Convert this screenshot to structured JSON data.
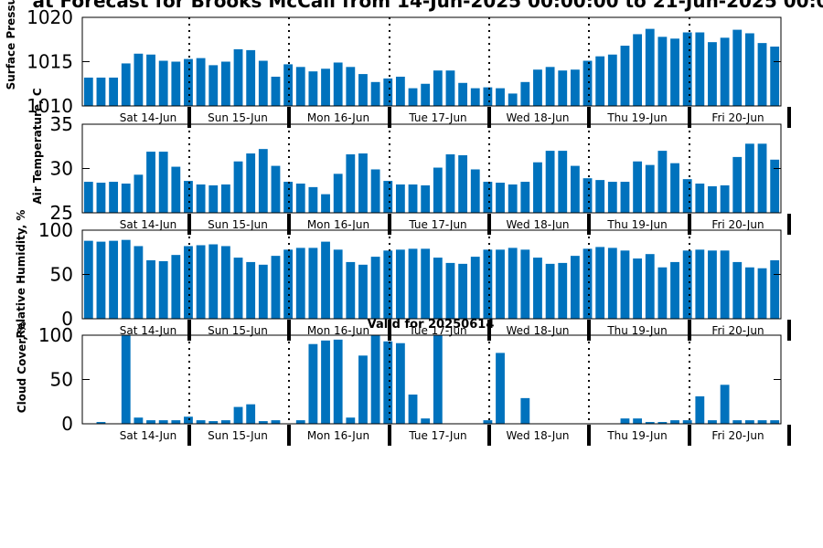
{
  "title": "at Forecast for Brooks McCall from 14-Jun-2025 00:00:00 to 21-Jun-2025 00:0",
  "valid_label": "Valid for 20250614",
  "colors": {
    "bar": "#0072bd",
    "axis": "#000000"
  },
  "chart_data": [
    {
      "type": "bar",
      "ylabel": "Surface Pressure, m",
      "ylim": [
        1010,
        1020
      ],
      "yticks": [
        "1010",
        "1015",
        "1020"
      ],
      "day_labels": [
        "Sat 14-Jun",
        "Sun 15-Jun",
        "Mon 16-Jun",
        "Tue 17-Jun",
        "Wed 18-Jun",
        "Thu 19-Jun",
        "Fri 20-Jun"
      ],
      "values": [
        1013.2,
        1013.2,
        1013.2,
        1014.8,
        1015.9,
        1015.8,
        1015.1,
        1015.0,
        1015.3,
        1015.4,
        1014.6,
        1015.0,
        1016.4,
        1016.3,
        1015.1,
        1013.3,
        1014.7,
        1014.4,
        1013.9,
        1014.2,
        1014.9,
        1014.4,
        1013.6,
        1012.7,
        1013.1,
        1013.3,
        1012.0,
        1012.5,
        1014.0,
        1014.0,
        1012.6,
        1012.0,
        1012.1,
        1012.0,
        1011.4,
        1012.7,
        1014.1,
        1014.4,
        1014.0,
        1014.1,
        1015.1,
        1015.6,
        1015.8,
        1016.8,
        1018.1,
        1018.7,
        1017.8,
        1017.6,
        1018.3,
        1018.3,
        1017.2,
        1017.7,
        1018.6,
        1018.2,
        1017.1,
        1016.7
      ]
    },
    {
      "type": "bar",
      "ylabel": "Air Temperature, C",
      "ylim": [
        25,
        35
      ],
      "yticks": [
        "25",
        "30",
        "35"
      ],
      "day_labels": [
        "Sat 14-Jun",
        "Sun 15-Jun",
        "Mon 16-Jun",
        "Tue 17-Jun",
        "Wed 18-Jun",
        "Thu 19-Jun",
        "Fri 20-Jun"
      ],
      "values": [
        28.5,
        28.4,
        28.5,
        28.3,
        29.3,
        31.9,
        31.9,
        30.2,
        28.6,
        28.2,
        28.1,
        28.2,
        30.8,
        31.7,
        32.2,
        30.3,
        28.5,
        28.3,
        27.9,
        27.1,
        29.4,
        31.6,
        31.7,
        29.9,
        28.6,
        28.2,
        28.2,
        28.1,
        30.1,
        31.6,
        31.5,
        29.9,
        28.5,
        28.4,
        28.2,
        28.5,
        30.7,
        32.0,
        32.0,
        30.3,
        28.9,
        28.7,
        28.5,
        28.5,
        30.8,
        30.4,
        32.0,
        30.6,
        28.8,
        28.3,
        28.0,
        28.1,
        31.3,
        32.8,
        32.8,
        31.0
      ]
    },
    {
      "type": "bar",
      "ylabel": "Relative Humidity, %",
      "ylim": [
        0,
        100
      ],
      "yticks": [
        "0",
        "50",
        "100"
      ],
      "day_labels": [
        "Sat 14-Jun",
        "Sun 15-Jun",
        "Mon 16-Jun",
        "Tue 17-Jun",
        "Wed 18-Jun",
        "Thu 19-Jun",
        "Fri 20-Jun"
      ],
      "values": [
        88,
        87,
        88,
        89,
        82,
        66,
        65,
        72,
        82,
        83,
        84,
        82,
        69,
        64,
        61,
        71,
        78,
        80,
        80,
        87,
        78,
        64,
        61,
        70,
        77,
        78,
        79,
        79,
        69,
        63,
        62,
        70,
        78,
        78,
        80,
        78,
        69,
        62,
        63,
        71,
        79,
        81,
        80,
        77,
        68,
        73,
        58,
        64,
        77,
        78,
        77,
        77,
        64,
        58,
        57,
        66
      ]
    },
    {
      "type": "bar",
      "ylabel": "Cloud Cover, %",
      "ylim": [
        0,
        100
      ],
      "yticks": [
        "0",
        "50",
        "100"
      ],
      "day_labels": [
        "Sat 14-Jun",
        "Sun 15-Jun",
        "Mon 16-Jun",
        "Tue 17-Jun",
        "Wed 18-Jun",
        "Thu 19-Jun",
        "Fri 20-Jun"
      ],
      "values": [
        0,
        2,
        0,
        100,
        7,
        4,
        4,
        4,
        8,
        4,
        3,
        4,
        19,
        22,
        3,
        4,
        0,
        4,
        90,
        94,
        95,
        7,
        77,
        100,
        93,
        91,
        33,
        6,
        100,
        0,
        0,
        0,
        4,
        80,
        0,
        29,
        0,
        0,
        0,
        0,
        0,
        0,
        0,
        6,
        6,
        2,
        2,
        4,
        4,
        31,
        4,
        44,
        4,
        4,
        4,
        4
      ]
    }
  ]
}
